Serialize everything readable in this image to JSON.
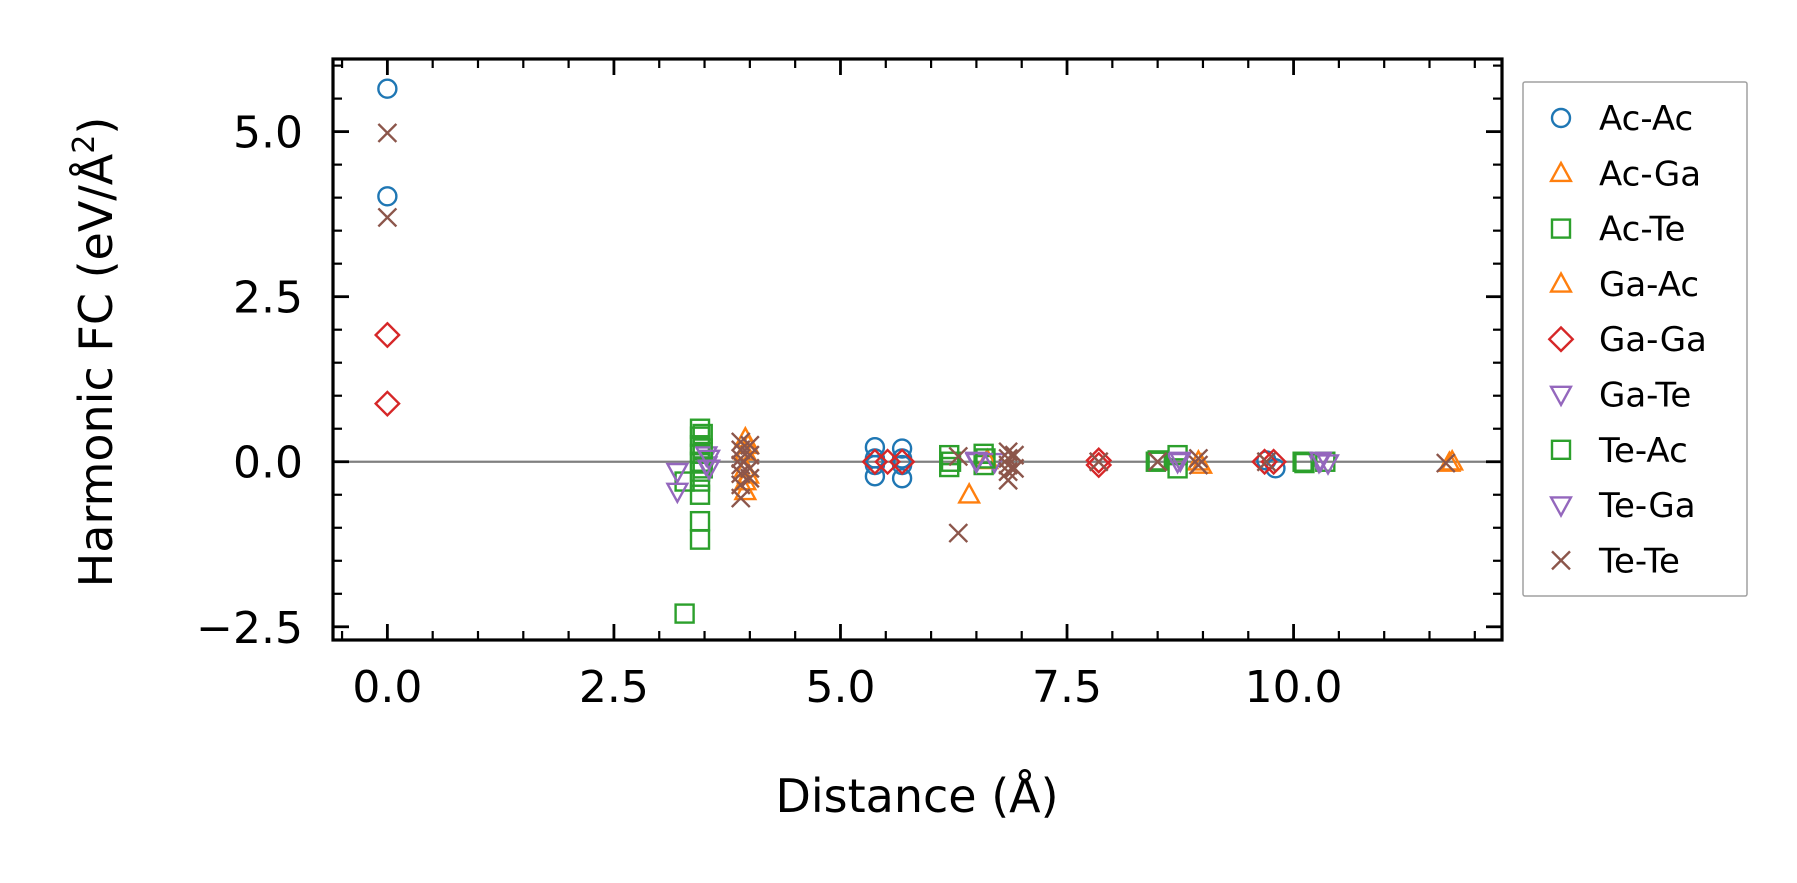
{
  "chart_data": {
    "type": "scatter",
    "title": "",
    "xlabel": "Distance (Å)",
    "ylabel": "Harmonic FC (eV/Å²)",
    "ylabel_main": "Harmonic FC (eV/Å",
    "ylabel_sup": "2",
    "ylabel_end": ")",
    "xlim": [
      -0.6,
      12.3
    ],
    "ylim": [
      -2.7,
      6.1
    ],
    "xticks": [
      0.0,
      2.5,
      5.0,
      7.5,
      10.0
    ],
    "xtick_labels": [
      "0.0",
      "2.5",
      "5.0",
      "7.5",
      "10.0"
    ],
    "yticks": [
      -2.5,
      0.0,
      2.5,
      5.0
    ],
    "ytick_labels": [
      "−2.5",
      "0.0",
      "2.5",
      "5.0"
    ],
    "zero_line": true,
    "grid": false,
    "legend_position": "outside-right",
    "series": [
      {
        "name": "Ac-Ac",
        "marker": "circle",
        "color": "#1f77b4",
        "points": [
          [
            0.0,
            5.65
          ],
          [
            0.0,
            4.02
          ],
          [
            5.38,
            0.22
          ],
          [
            5.38,
            0.05
          ],
          [
            5.38,
            -0.05
          ],
          [
            5.38,
            -0.22
          ],
          [
            5.68,
            0.2
          ],
          [
            5.68,
            0.05
          ],
          [
            5.68,
            -0.05
          ],
          [
            5.68,
            -0.25
          ],
          [
            9.7,
            0.02
          ],
          [
            9.8,
            -0.1
          ]
        ]
      },
      {
        "name": "Ac-Ga",
        "marker": "triangle-up",
        "color": "#ff7f0e",
        "points": [
          [
            3.95,
            0.35
          ],
          [
            3.95,
            0.15
          ],
          [
            3.95,
            -0.1
          ],
          [
            3.95,
            -0.3
          ],
          [
            3.95,
            -0.45
          ],
          [
            6.42,
            -0.5
          ],
          [
            8.95,
            0.0
          ],
          [
            11.72,
            -0.02
          ]
        ]
      },
      {
        "name": "Ac-Te",
        "marker": "square",
        "color": "#2ca02c",
        "points": [
          [
            3.28,
            -2.3
          ],
          [
            3.28,
            -0.3
          ],
          [
            3.45,
            0.5
          ],
          [
            3.45,
            0.38
          ],
          [
            3.45,
            0.25
          ],
          [
            3.45,
            0.12
          ],
          [
            3.45,
            0.0
          ],
          [
            3.45,
            -0.15
          ],
          [
            3.45,
            -0.3
          ],
          [
            3.45,
            -0.5
          ],
          [
            3.45,
            -0.9
          ],
          [
            3.45,
            -1.18
          ],
          [
            6.2,
            0.1
          ],
          [
            6.2,
            -0.08
          ],
          [
            6.58,
            0.12
          ],
          [
            6.58,
            -0.05
          ],
          [
            8.48,
            0.0
          ],
          [
            8.72,
            0.1
          ],
          [
            8.72,
            -0.1
          ],
          [
            10.1,
            0.0
          ],
          [
            10.35,
            0.0
          ]
        ]
      },
      {
        "name": "Ga-Ac",
        "marker": "triangle-up",
        "color": "#ff7f0e",
        "points": [
          [
            3.98,
            0.25
          ],
          [
            3.98,
            -0.2
          ],
          [
            6.62,
            0.02
          ],
          [
            8.98,
            -0.05
          ],
          [
            11.75,
            0.0
          ]
        ]
      },
      {
        "name": "Ga-Ga",
        "marker": "diamond",
        "color": "#d62728",
        "points": [
          [
            0.0,
            1.92
          ],
          [
            0.0,
            0.88
          ],
          [
            5.38,
            0.0
          ],
          [
            5.52,
            0.0
          ],
          [
            5.68,
            0.0
          ],
          [
            7.85,
            0.02
          ],
          [
            7.85,
            -0.05
          ],
          [
            9.68,
            0.0
          ],
          [
            9.78,
            0.0
          ]
        ]
      },
      {
        "name": "Ga-Te",
        "marker": "triangle-down",
        "color": "#9467bd",
        "points": [
          [
            3.2,
            -0.15
          ],
          [
            3.2,
            -0.45
          ],
          [
            3.52,
            0.1
          ],
          [
            3.52,
            -0.05
          ],
          [
            6.5,
            0.0
          ],
          [
            6.7,
            0.0
          ],
          [
            8.72,
            0.0
          ],
          [
            10.28,
            0.0
          ]
        ]
      },
      {
        "name": "Te-Ac",
        "marker": "square",
        "color": "#2ca02c",
        "points": [
          [
            3.48,
            0.42
          ],
          [
            3.48,
            0.2
          ],
          [
            3.48,
            -0.1
          ],
          [
            6.22,
            0.0
          ],
          [
            6.6,
            0.05
          ],
          [
            8.5,
            0.02
          ],
          [
            10.12,
            -0.02
          ]
        ]
      },
      {
        "name": "Te-Ga",
        "marker": "triangle-down",
        "color": "#9467bd",
        "points": [
          [
            3.55,
            0.05
          ],
          [
            3.55,
            -0.1
          ],
          [
            6.5,
            0.02
          ],
          [
            8.75,
            0.02
          ],
          [
            10.3,
            0.02
          ],
          [
            10.38,
            -0.02
          ]
        ]
      },
      {
        "name": "Te-Te",
        "marker": "x",
        "color": "#8c564b",
        "points": [
          [
            0.0,
            4.98
          ],
          [
            0.0,
            3.7
          ],
          [
            3.9,
            0.3
          ],
          [
            3.9,
            0.18
          ],
          [
            3.9,
            0.05
          ],
          [
            3.9,
            -0.05
          ],
          [
            3.9,
            -0.18
          ],
          [
            3.9,
            -0.35
          ],
          [
            3.9,
            -0.55
          ],
          [
            4.0,
            0.25
          ],
          [
            4.0,
            0.1
          ],
          [
            4.0,
            -0.1
          ],
          [
            4.0,
            -0.25
          ],
          [
            6.3,
            0.08
          ],
          [
            6.3,
            -1.08
          ],
          [
            6.85,
            0.15
          ],
          [
            6.85,
            0.05
          ],
          [
            6.85,
            -0.05
          ],
          [
            6.85,
            -0.15
          ],
          [
            6.85,
            -0.28
          ],
          [
            6.92,
            0.1
          ],
          [
            6.92,
            -0.1
          ],
          [
            7.85,
            0.0
          ],
          [
            8.5,
            0.0
          ],
          [
            8.95,
            0.05
          ],
          [
            8.95,
            -0.05
          ],
          [
            9.7,
            0.0
          ],
          [
            11.68,
            -0.02
          ]
        ]
      }
    ]
  }
}
